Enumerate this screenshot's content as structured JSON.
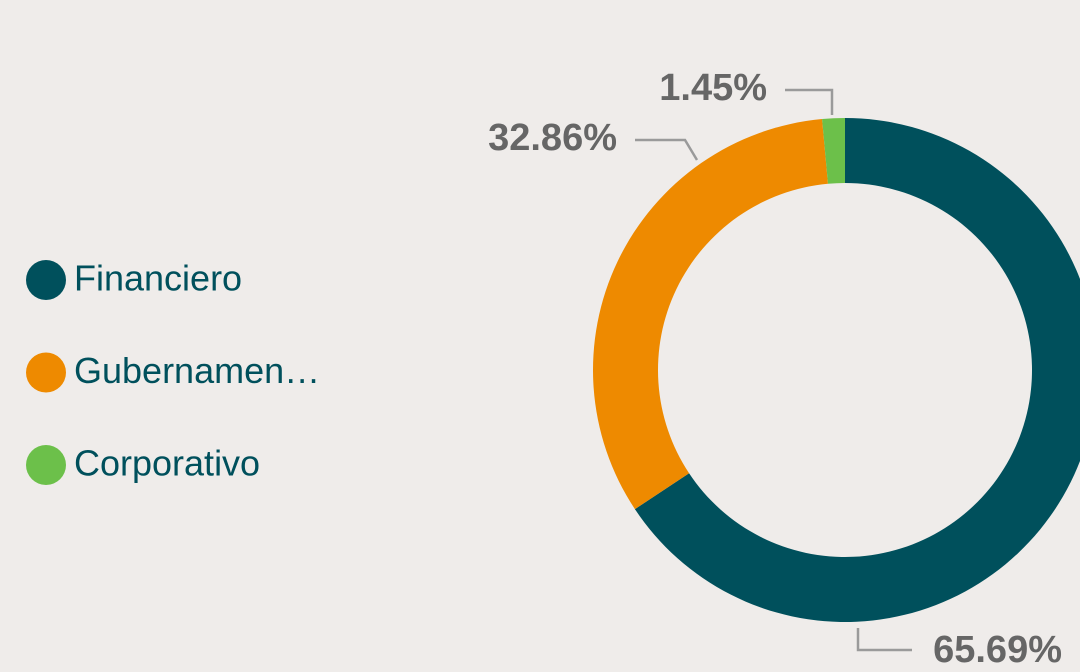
{
  "chart_data": {
    "type": "donut",
    "categories": [
      "Financiero",
      "Gubernamen…",
      "Corporativo"
    ],
    "values": [
      65.69,
      32.86,
      1.45
    ],
    "value_labels": [
      "65.69%",
      "32.86%",
      "1.45%"
    ],
    "colors": [
      "#00505c",
      "#ee8a00",
      "#6cc04a"
    ],
    "legend": "left"
  }
}
